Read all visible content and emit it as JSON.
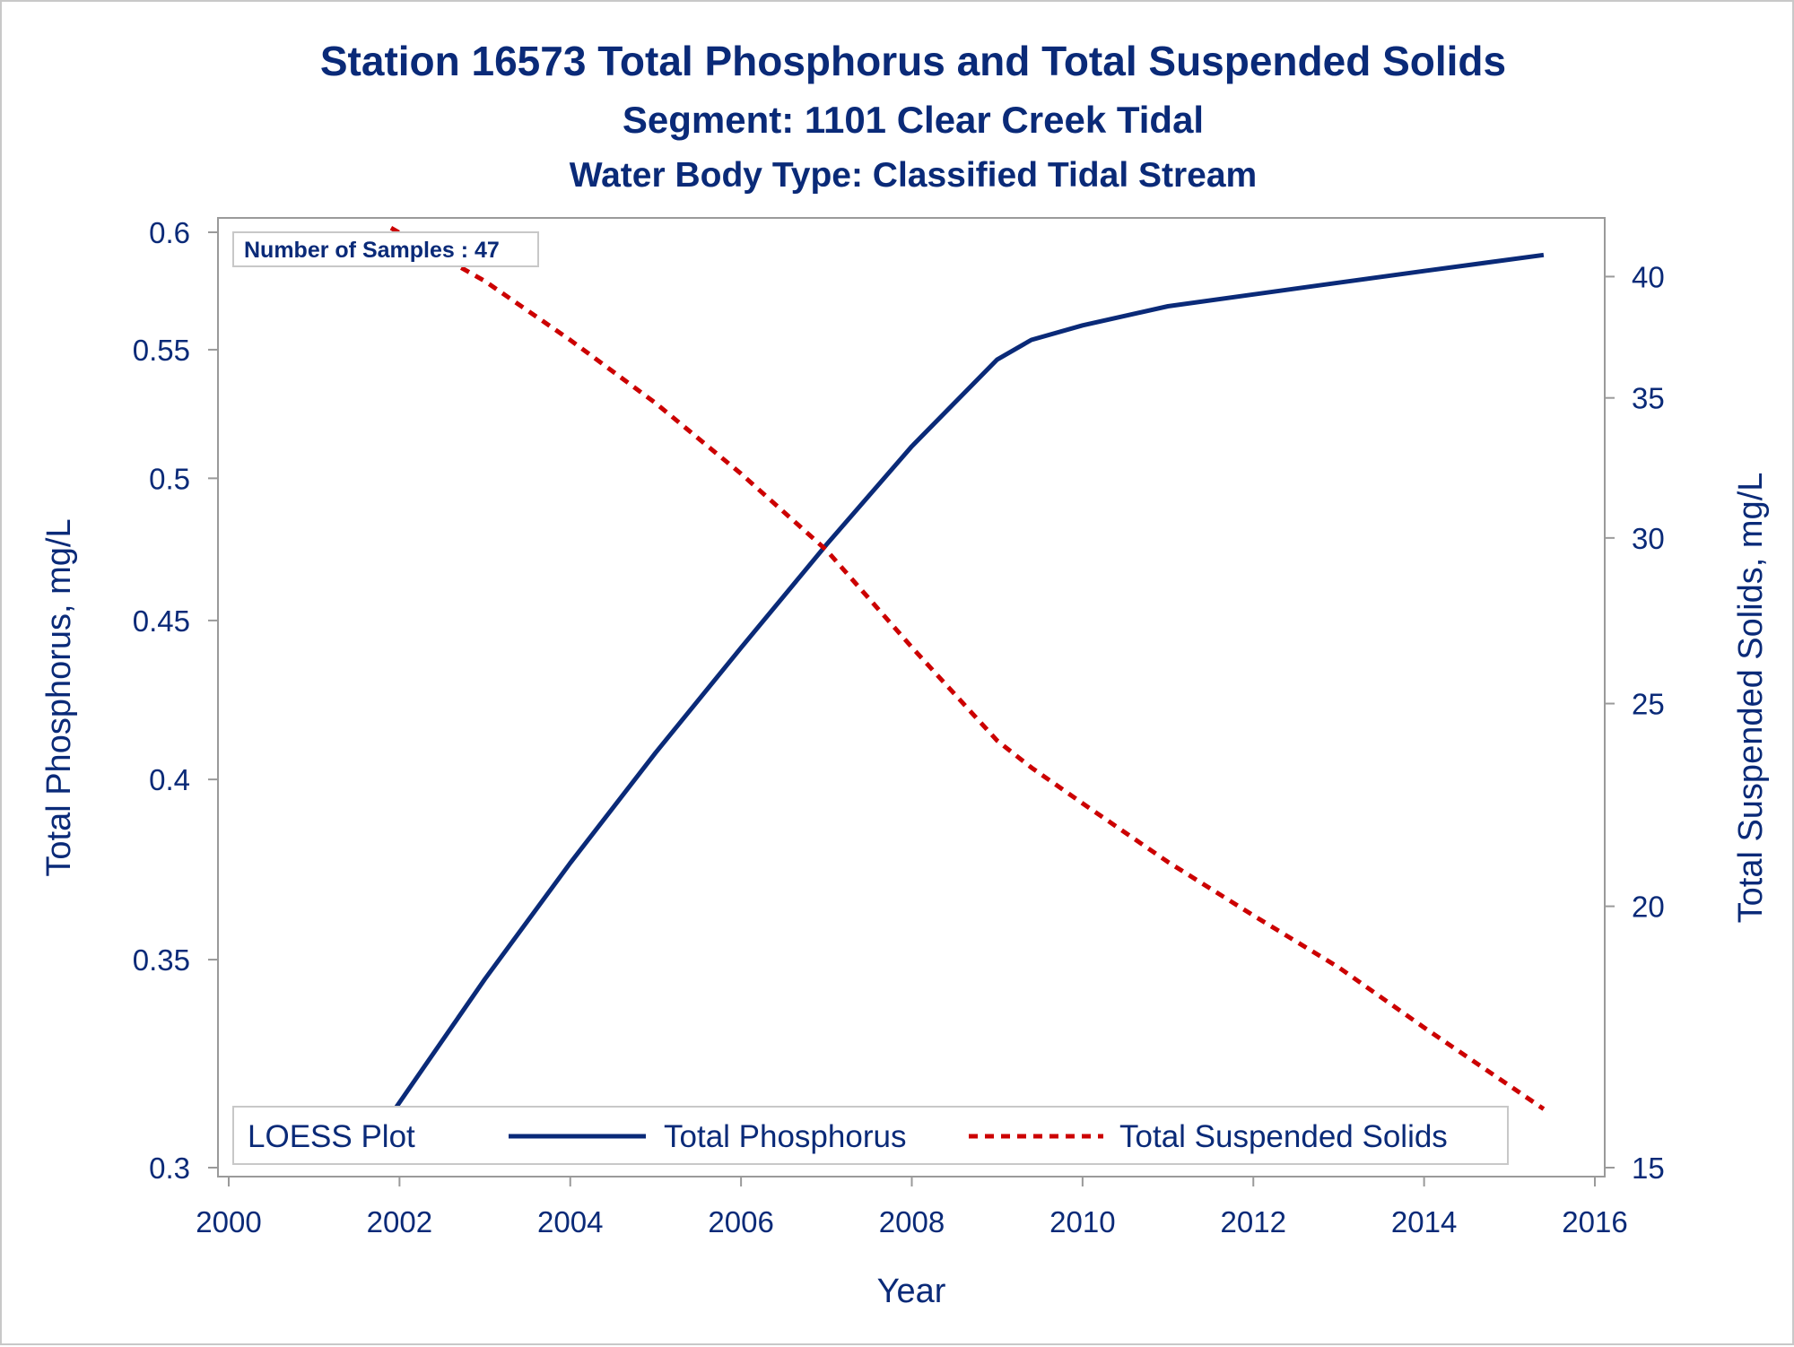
{
  "titles": {
    "line1": "Station 16573  Total Phosphorus and Total Suspended Solids",
    "line2": "Segment: 1101  Clear Creek Tidal",
    "line3": "Water Body Type: Classified Tidal Stream"
  },
  "inset": {
    "text": "Number of Samples : 47"
  },
  "legend": {
    "title": "LOESS Plot",
    "items": [
      {
        "label": "Total Phosphorus",
        "color": "#0a2a78",
        "style": "solid"
      },
      {
        "label": "Total Suspended Solids",
        "color": "#cc0000",
        "style": "dashed"
      }
    ]
  },
  "chart_data": {
    "type": "line",
    "xlabel": "Year",
    "ylabel": "Total Phosphorus, mg/L",
    "y2label": "Total Suspended Solids, mg/L",
    "xlim": [
      2000,
      2016
    ],
    "xticks": [
      2000,
      2002,
      2004,
      2006,
      2008,
      2010,
      2012,
      2014,
      2016
    ],
    "y_scale": "log",
    "ylim": [
      0.3,
      0.6
    ],
    "yticks": [
      0.3,
      0.35,
      0.4,
      0.45,
      0.5,
      0.55,
      0.6
    ],
    "y_tick_labels": [
      "0.3",
      "0.35",
      "0.4",
      "0.45",
      "0.5",
      "0.55",
      "0.6"
    ],
    "y2_scale": "log",
    "y2lim": [
      15,
      42
    ],
    "y2ticks": [
      15,
      20,
      25,
      30,
      35,
      40
    ],
    "grid": false,
    "legend_position": "bottom-inside",
    "series": [
      {
        "name": "Total Phosphorus",
        "axis": "left",
        "color": "#0a2a78",
        "x": [
          2001.9,
          2003.0,
          2004.0,
          2005.0,
          2006.0,
          2007.0,
          2008.0,
          2009.0,
          2009.4,
          2010.0,
          2011.0,
          2012.0,
          2013.0,
          2014.0,
          2015.4
        ],
        "y": [
          0.312,
          0.345,
          0.376,
          0.408,
          0.441,
          0.476,
          0.512,
          0.546,
          0.554,
          0.56,
          0.568,
          0.573,
          0.578,
          0.583,
          0.59
        ]
      },
      {
        "name": "Total Suspended Solids",
        "axis": "right",
        "color": "#cc0000",
        "x": [
          2001.9,
          2003.0,
          2004.0,
          2005.0,
          2006.0,
          2007.0,
          2008.0,
          2009.0,
          2009.4,
          2010.0,
          2011.0,
          2012.0,
          2013.0,
          2014.0,
          2015.4
        ],
        "y": [
          42.2,
          39.8,
          37.3,
          34.8,
          32.2,
          29.6,
          26.6,
          24.0,
          23.3,
          22.4,
          21.0,
          19.8,
          18.7,
          17.5,
          16.0
        ]
      }
    ]
  }
}
